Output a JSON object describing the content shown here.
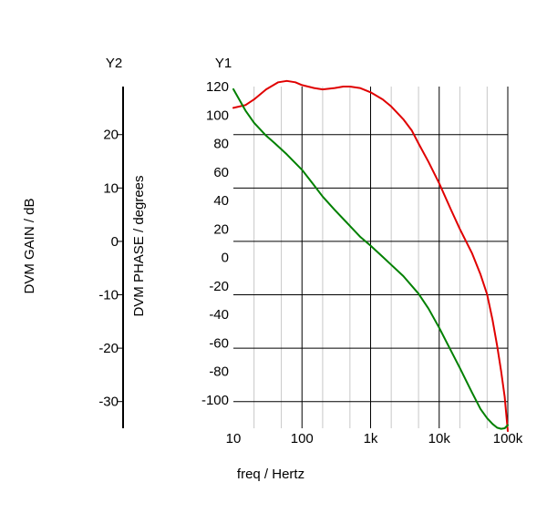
{
  "chart_data": {
    "type": "line",
    "xlabel": "freq / Hertz",
    "x_scale": "log",
    "x_range": [
      10,
      100000
    ],
    "x_ticks": [
      {
        "value": 10,
        "label": "10"
      },
      {
        "value": 100,
        "label": "100"
      },
      {
        "value": 1000,
        "label": "1k"
      },
      {
        "value": 10000,
        "label": "10k"
      },
      {
        "value": 100000,
        "label": "100k"
      }
    ],
    "grid": true,
    "axes": {
      "y1": {
        "heading": "Y1",
        "ylabel": "DVM PHASE / degrees",
        "range": [
          -120,
          120
        ],
        "ticks": [
          {
            "value": 120,
            "label": "120"
          },
          {
            "value": 100,
            "label": "100"
          },
          {
            "value": 80,
            "label": "80"
          },
          {
            "value": 60,
            "label": "60"
          },
          {
            "value": 40,
            "label": "40"
          },
          {
            "value": 20,
            "label": "20"
          },
          {
            "value": 0,
            "label": "0"
          },
          {
            "value": -20,
            "label": "-20"
          },
          {
            "value": -40,
            "label": "-40"
          },
          {
            "value": -60,
            "label": "-60"
          },
          {
            "value": -80,
            "label": "-80"
          },
          {
            "value": -100,
            "label": "-100"
          }
        ]
      },
      "y2": {
        "heading": "Y2",
        "ylabel": "DVM GAIN / dB",
        "range": [
          -35,
          29
        ],
        "ticks": [
          {
            "value": 20,
            "label": "20"
          },
          {
            "value": 10,
            "label": "10"
          },
          {
            "value": 0,
            "label": "0"
          },
          {
            "value": -10,
            "label": "-10"
          },
          {
            "value": -20,
            "label": "-20"
          },
          {
            "value": -30,
            "label": "-30"
          }
        ]
      }
    },
    "series": [
      {
        "color": "#e00000",
        "axis": "y1",
        "x": [
          10,
          15,
          20,
          30,
          45,
          60,
          80,
          100,
          150,
          200,
          300,
          400,
          500,
          700,
          1000,
          1500,
          2000,
          3000,
          4000,
          5000,
          7000,
          10000,
          15000,
          20000,
          30000,
          40000,
          50000,
          60000,
          70000,
          80000,
          90000,
          95000,
          100000
        ],
        "y": [
          105,
          107,
          111,
          118,
          123,
          124,
          123,
          121,
          119,
          118,
          119,
          120,
          120,
          119,
          116,
          111,
          106,
          97,
          89,
          80,
          67,
          52,
          33,
          20,
          3,
          -12,
          -26,
          -44,
          -62,
          -80,
          -98,
          -110,
          -122
        ]
      },
      {
        "color": "#008000",
        "axis": "y2",
        "x": [
          10,
          15,
          20,
          30,
          40,
          60,
          100,
          150,
          200,
          300,
          500,
          700,
          1000,
          1500,
          2000,
          3000,
          5000,
          7000,
          10000,
          15000,
          20000,
          30000,
          40000,
          50000,
          60000,
          70000,
          80000,
          90000,
          100000
        ],
        "y": [
          28.5,
          24.5,
          22.2,
          19.8,
          18.4,
          16.3,
          13.4,
          10.5,
          8.4,
          5.9,
          2.9,
          0.9,
          -0.8,
          -2.9,
          -4.4,
          -6.5,
          -9.8,
          -12.6,
          -16.2,
          -20.6,
          -23.7,
          -28.3,
          -31.4,
          -33.1,
          -34.2,
          -34.9,
          -35.1,
          -35.0,
          -34.4
        ]
      }
    ]
  }
}
